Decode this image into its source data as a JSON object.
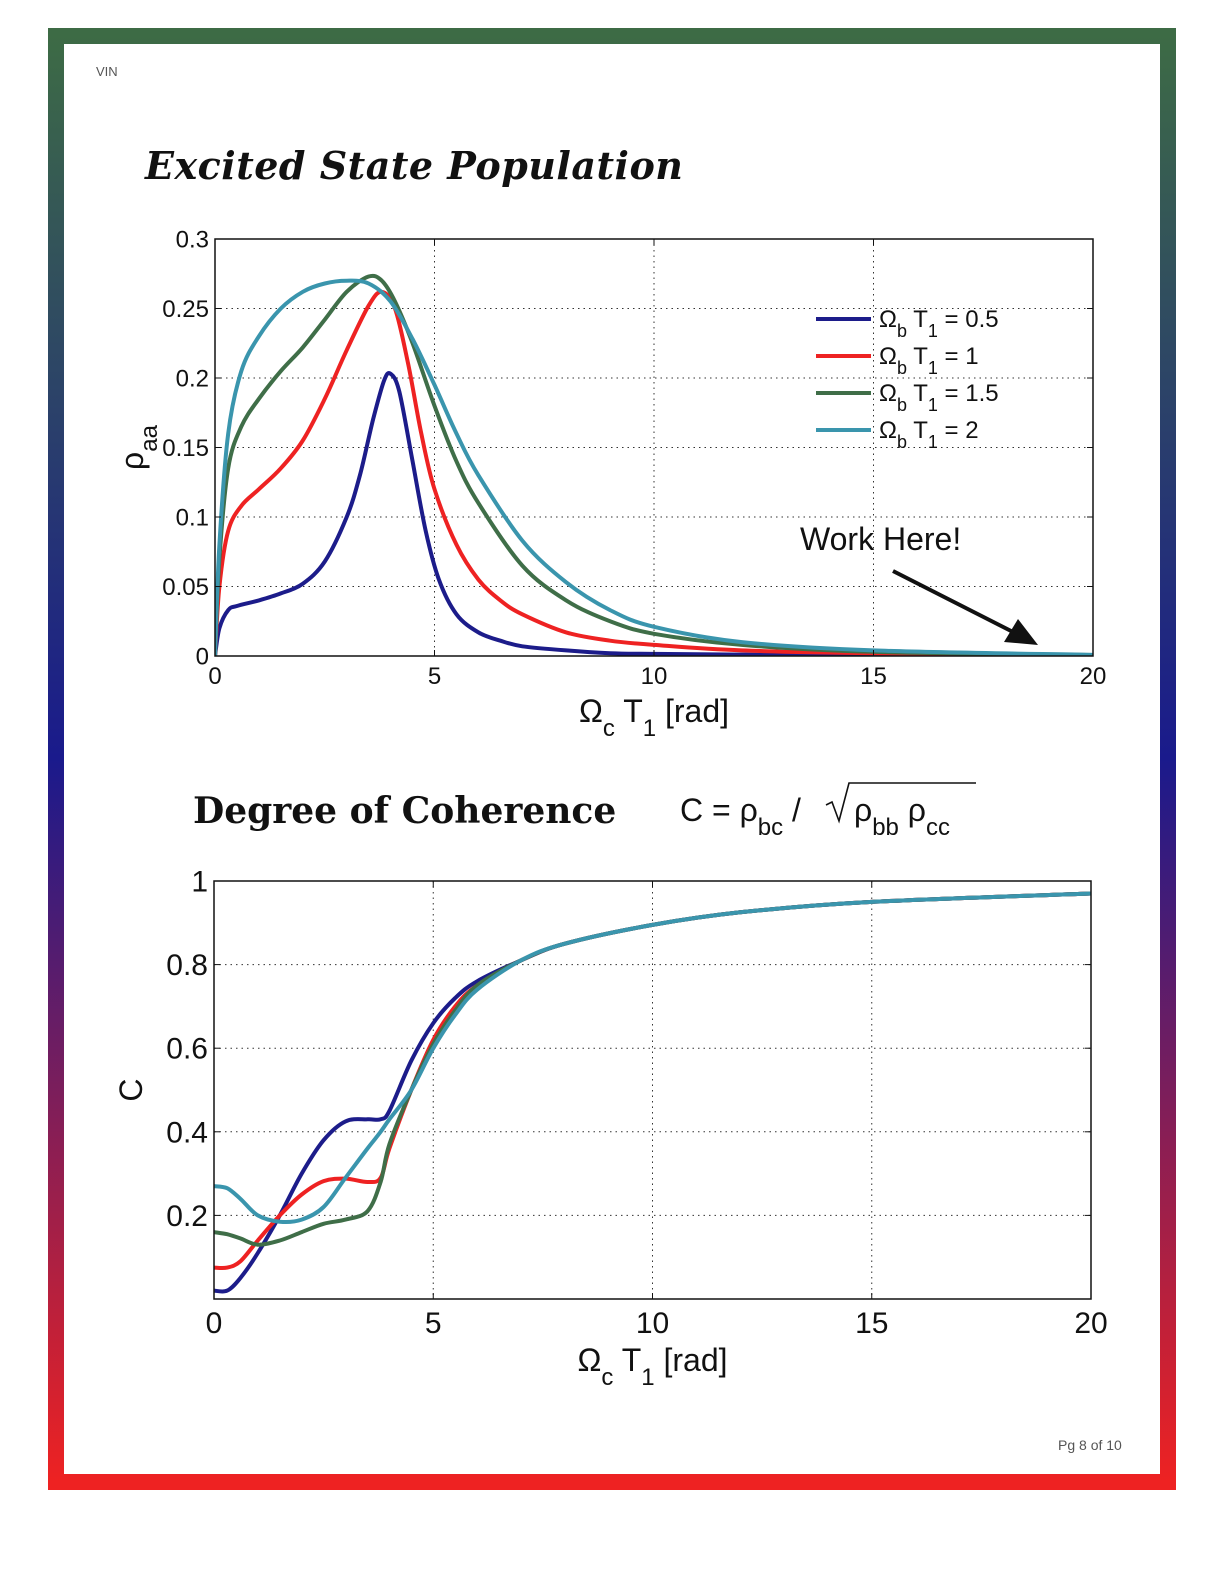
{
  "header_tag": "VIN",
  "footer": "Pg 8 of 10",
  "frame_colors": {
    "top": "#3d6b45",
    "middle": "#1a1a8c",
    "bottom": "#ee2222"
  },
  "chart_data": [
    {
      "type": "line",
      "title": "Excited State Population",
      "xlabel": "Ω_c T_1 [rad]",
      "ylabel": "ρ_aa",
      "xlim": [
        0,
        20
      ],
      "ylim": [
        0,
        0.3
      ],
      "xticks": [
        "0",
        "5",
        "10",
        "15",
        "20"
      ],
      "yticks": [
        "0",
        "0.05",
        "0.1",
        "0.15",
        "0.2",
        "0.25",
        "0.3"
      ],
      "grid": true,
      "legend_position": "upper-right",
      "annotation": "Work Here!",
      "series": [
        {
          "name": "Ω_b T_1 = 0.5",
          "color": "#1c1c8a",
          "x": [
            0,
            0.1,
            0.3,
            0.5,
            1,
            1.5,
            2,
            2.5,
            3,
            3.3,
            3.6,
            3.85,
            4.0,
            4.2,
            4.5,
            4.8,
            5.1,
            5.5,
            6,
            6.5,
            7,
            8,
            9,
            10,
            12,
            15,
            20
          ],
          "y": [
            0,
            0.02,
            0.033,
            0.036,
            0.04,
            0.045,
            0.052,
            0.068,
            0.1,
            0.13,
            0.17,
            0.198,
            0.203,
            0.19,
            0.14,
            0.09,
            0.055,
            0.03,
            0.017,
            0.011,
            0.007,
            0.004,
            0.002,
            0.0015,
            0.001,
            0.0005,
            0.0002
          ]
        },
        {
          "name": "Ω_b T_1 = 1",
          "color": "#ee2222",
          "x": [
            0,
            0.1,
            0.3,
            0.6,
            1,
            1.5,
            2,
            2.5,
            3,
            3.5,
            3.8,
            4.1,
            4.4,
            4.7,
            5,
            5.5,
            6,
            6.5,
            7,
            8,
            9,
            10,
            12,
            15,
            20
          ],
          "y": [
            0,
            0.05,
            0.09,
            0.108,
            0.12,
            0.135,
            0.155,
            0.185,
            0.22,
            0.252,
            0.262,
            0.25,
            0.21,
            0.16,
            0.12,
            0.08,
            0.055,
            0.04,
            0.03,
            0.017,
            0.011,
            0.008,
            0.004,
            0.002,
            0.0005
          ]
        },
        {
          "name": "Ω_b T_1 = 1.5",
          "color": "#3f6e48",
          "x": [
            0,
            0.1,
            0.3,
            0.6,
            1,
            1.5,
            2,
            2.5,
            3,
            3.5,
            3.8,
            4.1,
            4.5,
            5,
            5.5,
            6,
            7,
            8,
            9,
            10,
            12,
            15,
            20
          ],
          "y": [
            0,
            0.07,
            0.135,
            0.165,
            0.185,
            0.205,
            0.222,
            0.242,
            0.262,
            0.273,
            0.27,
            0.255,
            0.225,
            0.18,
            0.14,
            0.11,
            0.065,
            0.04,
            0.025,
            0.016,
            0.008,
            0.003,
            0.0007
          ]
        },
        {
          "name": "Ω_b T_1 = 2",
          "color": "#3a95ad",
          "x": [
            0,
            0.1,
            0.3,
            0.6,
            1,
            1.5,
            2,
            2.5,
            3,
            3.5,
            4,
            4.5,
            5,
            5.5,
            6,
            7,
            8,
            9,
            10,
            12,
            15,
            20
          ],
          "y": [
            0,
            0.08,
            0.16,
            0.205,
            0.23,
            0.25,
            0.262,
            0.268,
            0.27,
            0.268,
            0.255,
            0.228,
            0.195,
            0.16,
            0.13,
            0.083,
            0.053,
            0.033,
            0.021,
            0.01,
            0.004,
            0.0008
          ]
        }
      ]
    },
    {
      "type": "line",
      "title": "Degree of Coherence",
      "formula": "C = ρ_bc / √(ρ_bb ρ_cc)",
      "xlabel": "Ω_c T_1 [rad]",
      "ylabel": "C",
      "xlim": [
        0,
        20
      ],
      "ylim": [
        0,
        1
      ],
      "xticks": [
        "0",
        "5",
        "10",
        "15",
        "20"
      ],
      "yticks": [
        "0.2",
        "0.4",
        "0.6",
        "0.8",
        "1"
      ],
      "grid": true,
      "series": [
        {
          "name": "Ω_b T_1 = 0.5",
          "color": "#1c1c8a",
          "x": [
            0,
            0.3,
            0.6,
            1,
            1.5,
            2,
            2.5,
            3,
            3.5,
            3.8,
            4,
            4.5,
            5,
            5.5,
            6,
            7,
            8,
            10,
            12,
            15,
            20
          ],
          "y": [
            0.02,
            0.02,
            0.05,
            0.11,
            0.2,
            0.3,
            0.38,
            0.425,
            0.43,
            0.43,
            0.45,
            0.57,
            0.66,
            0.72,
            0.76,
            0.81,
            0.85,
            0.895,
            0.925,
            0.95,
            0.97
          ]
        },
        {
          "name": "Ω_b T_1 = 1",
          "color": "#ee2222",
          "x": [
            0,
            0.3,
            0.6,
            1,
            1.5,
            2,
            2.5,
            3,
            3.5,
            3.8,
            4,
            4.5,
            5,
            5.5,
            6,
            7,
            8,
            10,
            12,
            15,
            20
          ],
          "y": [
            0.075,
            0.075,
            0.09,
            0.14,
            0.2,
            0.25,
            0.282,
            0.288,
            0.28,
            0.29,
            0.36,
            0.5,
            0.62,
            0.7,
            0.75,
            0.81,
            0.85,
            0.895,
            0.925,
            0.95,
            0.97
          ]
        },
        {
          "name": "Ω_b T_1 = 1.5",
          "color": "#3f6e48",
          "x": [
            0,
            0.3,
            0.6,
            1,
            1.5,
            2,
            2.5,
            3,
            3.5,
            3.8,
            4,
            4.5,
            5,
            5.5,
            6,
            7,
            8,
            10,
            12,
            15,
            20
          ],
          "y": [
            0.16,
            0.155,
            0.145,
            0.13,
            0.14,
            0.16,
            0.18,
            0.19,
            0.21,
            0.28,
            0.37,
            0.5,
            0.61,
            0.69,
            0.75,
            0.81,
            0.85,
            0.895,
            0.925,
            0.95,
            0.97
          ]
        },
        {
          "name": "Ω_b T_1 = 2",
          "color": "#3a95ad",
          "x": [
            0,
            0.3,
            0.6,
            1,
            1.5,
            2,
            2.5,
            3,
            3.5,
            3.8,
            4,
            4.5,
            5,
            5.5,
            6,
            7,
            8,
            10,
            12,
            15,
            20
          ],
          "y": [
            0.27,
            0.265,
            0.24,
            0.2,
            0.185,
            0.19,
            0.22,
            0.29,
            0.36,
            0.4,
            0.43,
            0.5,
            0.6,
            0.68,
            0.74,
            0.81,
            0.85,
            0.895,
            0.925,
            0.95,
            0.97
          ]
        }
      ]
    }
  ]
}
